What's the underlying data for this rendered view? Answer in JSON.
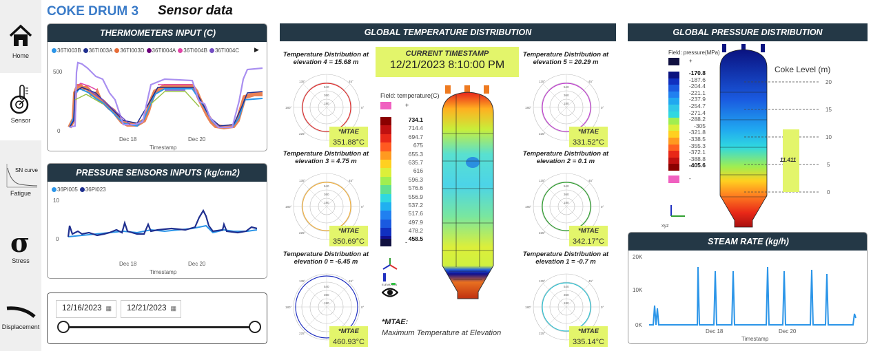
{
  "title": "COKE DRUM 3",
  "subtitle": "Sensor data",
  "sidebar": {
    "items": [
      {
        "label": "Home",
        "icon": "home-icon"
      },
      {
        "label": "Sensor",
        "icon": "thermometer-gauge-icon"
      },
      {
        "label": "SN curve",
        "sublabel": "Fatigue",
        "icon": "sn-curve-icon"
      },
      {
        "label": "Stress",
        "icon": "sigma-icon"
      },
      {
        "label": "Displacement",
        "icon": "displacement-curve-icon"
      }
    ]
  },
  "thermometers": {
    "header": "THERMOMETERS INPUT (C)",
    "legend": [
      {
        "name": "36TI003B",
        "color": "#2b95e8"
      },
      {
        "name": "36TI003A",
        "color": "#1f2f8f"
      },
      {
        "name": "36TI003D",
        "color": "#e66c37"
      },
      {
        "name": "36TI004A",
        "color": "#6b007b"
      },
      {
        "name": "36TI004B",
        "color": "#e044a7"
      },
      {
        "name": "36TI004C",
        "color": "#744ec2"
      }
    ],
    "y_ticks": [
      "500",
      "0"
    ],
    "x_ticks": [
      "Dec 18",
      "Dec 20"
    ],
    "x_label": "Timestamp"
  },
  "pressure_sensors": {
    "header": "PRESSURE SENSORS INPUTS (kg/cm2)",
    "legend": [
      {
        "name": "36PI005",
        "color": "#2b95e8"
      },
      {
        "name": "36PI023",
        "color": "#1f2f8f"
      }
    ],
    "y_ticks": [
      "10",
      "0"
    ],
    "x_ticks": [
      "Dec 18",
      "Dec 20"
    ],
    "x_label": "Timestamp"
  },
  "date_range": {
    "start": "12/16/2023",
    "end": "12/21/2023"
  },
  "global_temperature": {
    "header": "GLOBAL TEMPERATURE DISTRIBUTION",
    "current_timestamp_label": "CURRENT TIMESTAMP",
    "current_timestamp": "12/21/2023 8:10:00 PM",
    "field_label": "Field: temperature(C)",
    "over_label": "+",
    "under_label": "-",
    "scale": [
      "734.1",
      "714.4",
      "694.7",
      "675",
      "655.3",
      "635.7",
      "616",
      "596.3",
      "576.6",
      "556.9",
      "537.2",
      "517.6",
      "497.9",
      "478.2",
      "458.5"
    ],
    "elevations": [
      {
        "title": "Temperature Distribution at elevation 4 = 15.68 m",
        "mtae_label": "*MTAE",
        "value": "351.88°C",
        "color": "#e03030"
      },
      {
        "title": "Temperature Distribution at elevation 3 = 4.75 m",
        "mtae_label": "*MTAE",
        "value": "350.69°C",
        "color": "#f0b040"
      },
      {
        "title": "Temperature Distribution at elevation 0 = -6.45 m",
        "mtae_label": "*MTAE",
        "value": "460.93°C",
        "color": "#2030c0"
      },
      {
        "title": "Temperature Distribution at elevation 5 = 20.29 m",
        "mtae_label": "*MTAE",
        "value": "331.52°C",
        "color": "#c040d0"
      },
      {
        "title": "Temperature Distribution at elevation 2 = 0.1 m",
        "mtae_label": "*MTAE",
        "value": "342.17°C",
        "color": "#30a030"
      },
      {
        "title": "Temperature Distribution at elevation 1 = -0.7 m",
        "mtae_label": "*MTAE",
        "value": "335.14°C",
        "color": "#30c0d0"
      }
    ],
    "polar_ticks": [
      "135°",
      "45°",
      "180°",
      "0°",
      "225°",
      "315°",
      "180",
      "360",
      "540"
    ],
    "footnote_title": "*MTAE:",
    "footnote_text": "Maximum Temperature at Elevation",
    "elevation_label": "ELEVATION"
  },
  "global_pressure": {
    "header": "GLOBAL PRESSURE DISTRIBUTION",
    "field_label": "Field: pressure(MPa)",
    "over_label": "+",
    "under_label": "-",
    "scale": [
      "-170.8",
      "-187.6",
      "-204.4",
      "-221.1",
      "-237.9",
      "-254.7",
      "-271.4",
      "-288.2",
      "-305",
      "-321.8",
      "-338.5",
      "-355.3",
      "-372.1",
      "-388.8",
      "-405.6"
    ],
    "coke_level_label": "Coke Level (m)",
    "coke_ticks": [
      "20",
      "15",
      "10",
      "5",
      "0"
    ],
    "coke_level_value": "11.411",
    "axis_label": "xyz"
  },
  "steam_rate": {
    "header": "STEAM RATE (kg/h)",
    "y_ticks": [
      "20K",
      "10K",
      "0K"
    ],
    "x_ticks": [
      "Dec 18",
      "Dec 20"
    ],
    "x_label": "Timestamp"
  }
}
